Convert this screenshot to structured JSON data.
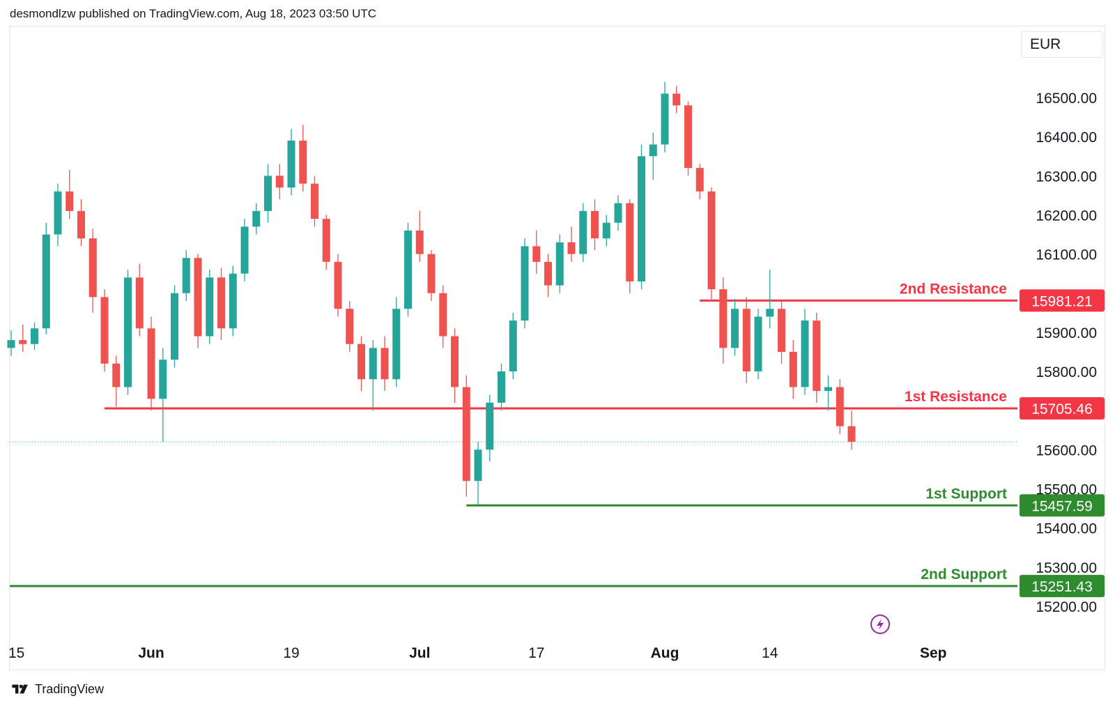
{
  "header": {
    "publisher": "desmondlzw published on TradingView.com, Aug 18, 2023 03:50 UTC"
  },
  "footer": {
    "brand": "TradingView"
  },
  "colors": {
    "up": "#26a69a",
    "down": "#ef5350",
    "resistance": "#f23645",
    "support": "#2e8b2e",
    "text": "#131722",
    "price_line": "#26a69a"
  },
  "chart_data": {
    "type": "candlestick",
    "currency": "EUR",
    "ylim": [
      15130,
      16590
    ],
    "y_ticks": [
      16500,
      16400,
      16300,
      16200,
      16100,
      15900,
      15800,
      15600,
      15500,
      15400,
      15300,
      15200
    ],
    "y_tick_labels": [
      "16500.00",
      "16400.00",
      "16300.00",
      "16200.00",
      "16100.00",
      "15900.00",
      "15800.00",
      "15600.00",
      "15500.00",
      "15400.00",
      "15300.00",
      "15200.00"
    ],
    "x_ticks": [
      {
        "label": "15",
        "bar": 0,
        "bold": false
      },
      {
        "label": "Jun",
        "bar": 12,
        "bold": true
      },
      {
        "label": "19",
        "bar": 24,
        "bold": false
      },
      {
        "label": "Jul",
        "bar": 35,
        "bold": true
      },
      {
        "label": "17",
        "bar": 45,
        "bold": false
      },
      {
        "label": "Aug",
        "bar": 56,
        "bold": true
      },
      {
        "label": "14",
        "bar": 65,
        "bold": false
      },
      {
        "label": "Sep",
        "bar": 79,
        "bold": true
      }
    ],
    "last_price": 15620,
    "levels": [
      {
        "name": "2nd Resistance",
        "value": 15981.21,
        "label": "15981.21",
        "kind": "resistance",
        "start_bar": 59
      },
      {
        "name": "1st Resistance",
        "value": 15705.46,
        "label": "15705.46",
        "kind": "resistance",
        "start_bar": 8
      },
      {
        "name": "1st Support",
        "value": 15457.59,
        "label": "15457.59",
        "kind": "support",
        "start_bar": 39
      },
      {
        "name": "2nd Support",
        "value": 15251.43,
        "label": "15251.43",
        "kind": "support",
        "start_bar": -1
      }
    ],
    "candles": [
      [
        15860,
        15905,
        15840,
        15880
      ],
      [
        15880,
        15920,
        15850,
        15870
      ],
      [
        15870,
        15925,
        15855,
        15910
      ],
      [
        15910,
        16180,
        15895,
        16150
      ],
      [
        16150,
        16280,
        16120,
        16260
      ],
      [
        16260,
        16315,
        16190,
        16210
      ],
      [
        16210,
        16240,
        16120,
        16140
      ],
      [
        16140,
        16165,
        15950,
        15990
      ],
      [
        15990,
        16010,
        15800,
        15820
      ],
      [
        15820,
        15840,
        15710,
        15760
      ],
      [
        15760,
        16060,
        15740,
        16040
      ],
      [
        16040,
        16075,
        15890,
        15910
      ],
      [
        15910,
        15940,
        15700,
        15730
      ],
      [
        15730,
        15860,
        15620,
        15830
      ],
      [
        15830,
        16020,
        15810,
        16000
      ],
      [
        16000,
        16110,
        15980,
        16090
      ],
      [
        16090,
        16100,
        15860,
        15890
      ],
      [
        15890,
        16060,
        15870,
        16040
      ],
      [
        16040,
        16065,
        15880,
        15910
      ],
      [
        15910,
        16070,
        15890,
        16050
      ],
      [
        16050,
        16190,
        16030,
        16170
      ],
      [
        16170,
        16230,
        16150,
        16210
      ],
      [
        16210,
        16330,
        16180,
        16300
      ],
      [
        16300,
        16330,
        16240,
        16270
      ],
      [
        16270,
        16420,
        16250,
        16390
      ],
      [
        16390,
        16430,
        16260,
        16280
      ],
      [
        16280,
        16300,
        16170,
        16190
      ],
      [
        16190,
        16200,
        16060,
        16080
      ],
      [
        16080,
        16100,
        15940,
        15960
      ],
      [
        15960,
        15980,
        15850,
        15870
      ],
      [
        15870,
        15890,
        15750,
        15780
      ],
      [
        15780,
        15880,
        15700,
        15860
      ],
      [
        15860,
        15890,
        15750,
        15780
      ],
      [
        15780,
        15990,
        15760,
        15960
      ],
      [
        15960,
        16180,
        15940,
        16160
      ],
      [
        16160,
        16210,
        16080,
        16100
      ],
      [
        16100,
        16110,
        15980,
        16000
      ],
      [
        16000,
        16020,
        15860,
        15890
      ],
      [
        15890,
        15910,
        15720,
        15760
      ],
      [
        15760,
        15790,
        15480,
        15520
      ],
      [
        15520,
        15620,
        15460,
        15600
      ],
      [
        15600,
        15740,
        15570,
        15720
      ],
      [
        15720,
        15820,
        15700,
        15800
      ],
      [
        15800,
        15950,
        15780,
        15930
      ],
      [
        15930,
        16140,
        15910,
        16120
      ],
      [
        16120,
        16160,
        16050,
        16080
      ],
      [
        16080,
        16100,
        15990,
        16020
      ],
      [
        16020,
        16150,
        16000,
        16130
      ],
      [
        16130,
        16170,
        16080,
        16100
      ],
      [
        16100,
        16230,
        16080,
        16210
      ],
      [
        16210,
        16240,
        16110,
        16140
      ],
      [
        16140,
        16200,
        16120,
        16180
      ],
      [
        16180,
        16250,
        16160,
        16230
      ],
      [
        16230,
        16240,
        16000,
        16030
      ],
      [
        16030,
        16380,
        16010,
        16350
      ],
      [
        16350,
        16410,
        16290,
        16380
      ],
      [
        16380,
        16540,
        16360,
        16510
      ],
      [
        16510,
        16530,
        16460,
        16480
      ],
      [
        16480,
        16490,
        16300,
        16320
      ],
      [
        16320,
        16330,
        16240,
        16260
      ],
      [
        16260,
        16270,
        15980,
        16010
      ],
      [
        16010,
        16040,
        15820,
        15860
      ],
      [
        15860,
        15985,
        15840,
        15960
      ],
      [
        15960,
        15990,
        15770,
        15800
      ],
      [
        15800,
        15960,
        15780,
        15940
      ],
      [
        15940,
        16060,
        15910,
        15960
      ],
      [
        15960,
        15980,
        15820,
        15850
      ],
      [
        15850,
        15880,
        15730,
        15760
      ],
      [
        15760,
        15960,
        15740,
        15930
      ],
      [
        15930,
        15950,
        15720,
        15750
      ],
      [
        15750,
        15790,
        15700,
        15760
      ],
      [
        15760,
        15780,
        15640,
        15660
      ],
      [
        15660,
        15700,
        15600,
        15620
      ]
    ]
  }
}
